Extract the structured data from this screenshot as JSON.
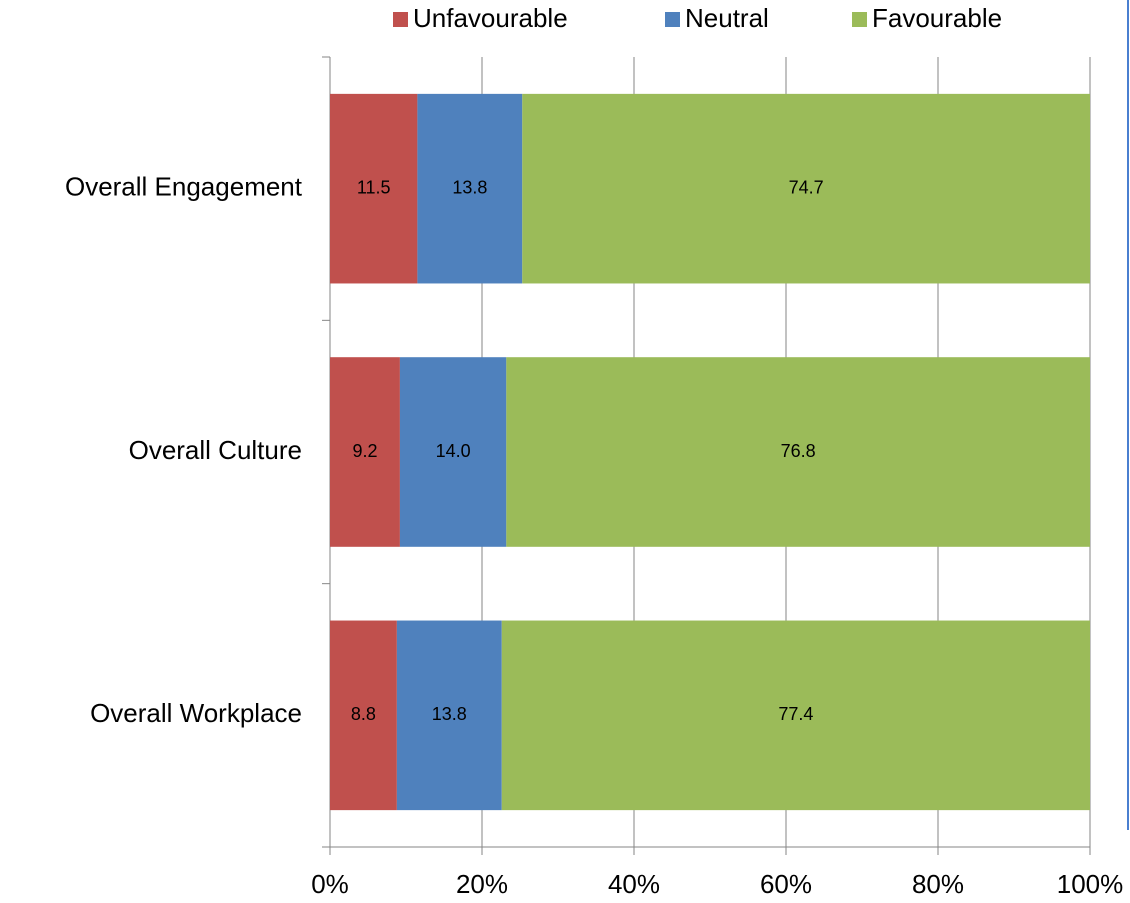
{
  "chart_data": {
    "type": "stacked_barh",
    "categories": [
      "Overall Engagement",
      "Overall Culture",
      "Overall Workplace"
    ],
    "series": [
      {
        "name": "Unfavourable",
        "color": "#c0504d",
        "values": [
          11.5,
          9.2,
          8.8
        ]
      },
      {
        "name": "Neutral",
        "color": "#4f81bd",
        "values": [
          13.8,
          14.0,
          13.8
        ],
        "value_labels": [
          "13.8",
          "14.0",
          "13.8"
        ]
      },
      {
        "name": "Favourable",
        "color": "#9bbb59",
        "values": [
          74.7,
          76.8,
          77.4
        ]
      }
    ],
    "xlim": [
      0,
      100
    ],
    "xticks": [
      {
        "value": 0,
        "label": "0%"
      },
      {
        "value": 20,
        "label": "20%"
      },
      {
        "value": 40,
        "label": "40%"
      },
      {
        "value": 60,
        "label": "60%"
      },
      {
        "value": 80,
        "label": "80%"
      },
      {
        "value": 100,
        "label": "100%"
      }
    ],
    "grid": true,
    "legend": "top"
  }
}
